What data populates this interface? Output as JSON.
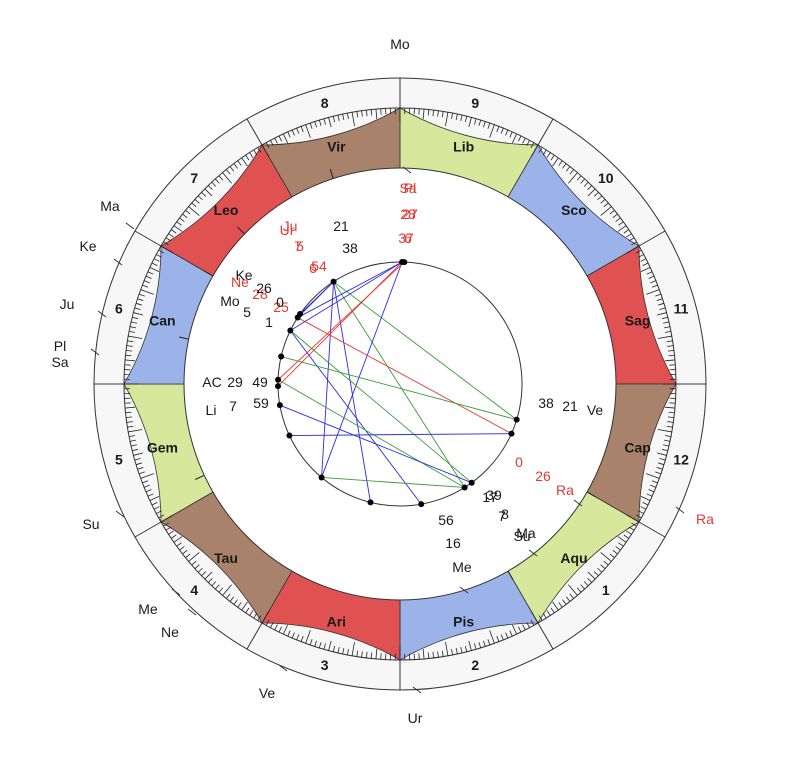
{
  "colors": {
    "fire": "#e05252",
    "earth": "#a8826a",
    "air": "#d7e79c",
    "water": "#9bb3e8",
    "ring": "#f7f7f7",
    "red": "#e53935",
    "blue_aspect": "#2b2bdd",
    "green_aspect": "#3a9a3a",
    "red_aspect": "#e53935"
  },
  "signs": [
    {
      "name": "Lib",
      "element": "air"
    },
    {
      "name": "Sco",
      "element": "water"
    },
    {
      "name": "Sag",
      "element": "fire"
    },
    {
      "name": "Cap",
      "element": "earth"
    },
    {
      "name": "Aqu",
      "element": "air"
    },
    {
      "name": "Pis",
      "element": "water"
    },
    {
      "name": "Ari",
      "element": "fire"
    },
    {
      "name": "Tau",
      "element": "earth"
    },
    {
      "name": "Gem",
      "element": "air"
    },
    {
      "name": "Can",
      "element": "water"
    },
    {
      "name": "Leo",
      "element": "fire"
    },
    {
      "name": "Vir",
      "element": "earth"
    }
  ],
  "houses": [
    "9",
    "10",
    "11",
    "12",
    "1",
    "2",
    "3",
    "4",
    "5",
    "6",
    "7",
    "8"
  ],
  "outer_planets": [
    {
      "name": "Mo",
      "red": false
    },
    {
      "name": "Ma",
      "red": false
    },
    {
      "name": "Ke",
      "red": false
    },
    {
      "name": "Ju",
      "red": false
    },
    {
      "name": "Pl",
      "red": false
    },
    {
      "name": "Sa",
      "red": false
    },
    {
      "name": "Su",
      "red": false
    },
    {
      "name": "Me",
      "red": false
    },
    {
      "name": "Ne",
      "red": false
    },
    {
      "name": "Ve",
      "red": false
    },
    {
      "name": "Ur",
      "red": false
    },
    {
      "name": "Ra",
      "red": true
    }
  ],
  "inner_labels": [
    {
      "text": "Sa",
      "red": true
    },
    {
      "text": "Pl",
      "red": true
    },
    {
      "text": "28",
      "red": true
    },
    {
      "text": "27",
      "red": true
    },
    {
      "text": "37",
      "red": true
    },
    {
      "text": "6",
      "red": true
    },
    {
      "text": "Ju",
      "red": true
    },
    {
      "text": "Ur",
      "red": true
    },
    {
      "text": "7",
      "red": true
    },
    {
      "text": "5",
      "red": true
    },
    {
      "text": "6",
      "red": true
    },
    {
      "text": "54",
      "red": true
    },
    {
      "text": "Ne",
      "red": true
    },
    {
      "text": "28",
      "red": true
    },
    {
      "text": "25",
      "red": true
    },
    {
      "text": "21",
      "red": false
    },
    {
      "text": "38",
      "red": false
    },
    {
      "text": "Ke",
      "red": false
    },
    {
      "text": "26",
      "red": false
    },
    {
      "text": "Mo",
      "red": false
    },
    {
      "text": "0",
      "red": false
    },
    {
      "text": "5",
      "red": false
    },
    {
      "text": "1",
      "red": false
    },
    {
      "text": "AC",
      "red": false
    },
    {
      "text": "29",
      "red": false
    },
    {
      "text": "49",
      "red": false
    },
    {
      "text": "Li",
      "red": false
    },
    {
      "text": "7",
      "red": false
    },
    {
      "text": "59",
      "red": false
    },
    {
      "text": "38",
      "red": false
    },
    {
      "text": "21",
      "red": false
    },
    {
      "text": "Ve",
      "red": false
    },
    {
      "text": "0",
      "red": true
    },
    {
      "text": "26",
      "red": true
    },
    {
      "text": "Ra",
      "red": true
    },
    {
      "text": "39",
      "red": false
    },
    {
      "text": "17",
      "red": false
    },
    {
      "text": "8",
      "red": false
    },
    {
      "text": "7",
      "red": false
    },
    {
      "text": "Ma",
      "red": false
    },
    {
      "text": "Su",
      "red": false
    },
    {
      "text": "56",
      "red": false
    },
    {
      "text": "16",
      "red": false
    },
    {
      "text": "Me",
      "red": false
    }
  ]
}
